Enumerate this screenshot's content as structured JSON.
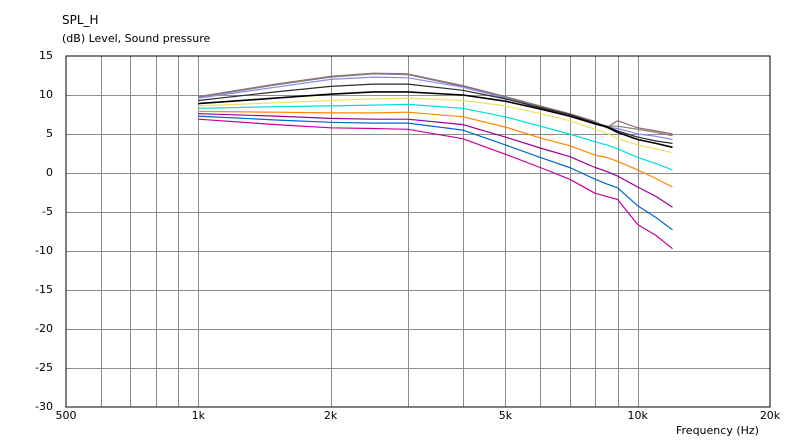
{
  "chart_data": {
    "type": "line",
    "title": "SPL_H",
    "subtitle": "(dB)  Level, Sound pressure",
    "xlabel": "Frequency  (Hz)",
    "ylabel": "",
    "xscale": "log",
    "xlim": [
      500,
      20000
    ],
    "ylim": [
      -30,
      15
    ],
    "grid": true,
    "legend": "none",
    "x_tick_labels": [
      "500",
      "1k",
      "2k",
      "5k",
      "10k",
      "20k"
    ],
    "y_tick_labels": [
      "15",
      "10",
      "5",
      "0",
      "-5",
      "-10",
      "-15",
      "-20",
      "-25",
      "-30"
    ],
    "x": [
      1000,
      1500,
      2000,
      2500,
      3000,
      4000,
      5000,
      6000,
      7000,
      8000,
      8500,
      9000,
      10000,
      11000,
      12000
    ],
    "series": [
      {
        "color": "#996666",
        "values": [
          9.8,
          11.4,
          12.4,
          12.8,
          12.7,
          11.2,
          9.8,
          8.6,
          7.6,
          6.6,
          5.8,
          6.7,
          5.8,
          5.4,
          5.0
        ]
      },
      {
        "color": "#808080",
        "values": [
          9.7,
          11.3,
          12.3,
          12.7,
          12.6,
          11.1,
          9.7,
          8.5,
          7.5,
          6.5,
          6.0,
          6.0,
          5.6,
          5.2,
          4.8
        ]
      },
      {
        "color": "#8888ee",
        "values": [
          9.6,
          11.0,
          12.0,
          12.3,
          12.2,
          11.0,
          9.6,
          8.3,
          7.3,
          6.3,
          5.9,
          5.7,
          5.0,
          4.7,
          4.3
        ]
      },
      {
        "color": "#2c2c2c",
        "values": [
          9.3,
          10.4,
          11.1,
          11.4,
          11.4,
          10.6,
          9.5,
          8.4,
          7.5,
          6.4,
          6.0,
          5.4,
          4.6,
          4.1,
          3.8
        ]
      },
      {
        "color": "#000000",
        "values": [
          8.9,
          9.6,
          10.1,
          10.4,
          10.4,
          10.0,
          9.2,
          8.2,
          7.3,
          6.3,
          5.9,
          5.2,
          4.3,
          3.8,
          3.3
        ]
      },
      {
        "color": "#e8e266",
        "values": [
          8.6,
          9.0,
          9.3,
          9.5,
          9.6,
          9.3,
          8.6,
          7.6,
          6.7,
          5.6,
          5.1,
          4.4,
          3.6,
          3.1,
          2.6
        ]
      },
      {
        "color": "#00dddd",
        "values": [
          8.3,
          8.5,
          8.6,
          8.7,
          8.8,
          8.3,
          7.2,
          6.0,
          5.0,
          4.0,
          3.6,
          3.1,
          2.0,
          1.2,
          0.4
        ]
      },
      {
        "color": "#ff8800",
        "values": [
          7.9,
          7.8,
          7.7,
          7.7,
          7.8,
          7.2,
          5.9,
          4.5,
          3.5,
          2.3,
          2.0,
          1.5,
          0.4,
          -0.7,
          -1.8
        ]
      },
      {
        "color": "#990099",
        "values": [
          7.6,
          7.3,
          7.0,
          6.9,
          6.9,
          6.2,
          4.6,
          3.2,
          2.1,
          0.7,
          0.2,
          -0.4,
          -1.8,
          -3.0,
          -4.4
        ]
      },
      {
        "color": "#0066cc",
        "values": [
          7.3,
          6.8,
          6.5,
          6.4,
          6.4,
          5.5,
          3.6,
          2.0,
          0.7,
          -0.8,
          -1.4,
          -1.9,
          -4.2,
          -5.7,
          -7.3
        ]
      },
      {
        "color": "#cc0099",
        "values": [
          6.9,
          6.2,
          5.8,
          5.7,
          5.6,
          4.4,
          2.4,
          0.7,
          -0.8,
          -2.6,
          -3.0,
          -3.4,
          -6.6,
          -8.0,
          -9.7
        ]
      }
    ]
  }
}
